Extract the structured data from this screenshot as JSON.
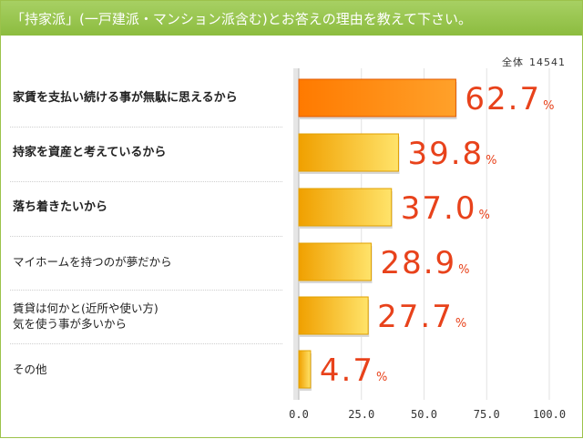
{
  "header": {
    "title": "「持家派」(一戸建派・マンション派含む)とお答えの理由を教えて下さい。"
  },
  "total": {
    "label": "全体",
    "value": "14541"
  },
  "colors": {
    "header": "#96c64f",
    "top_bar": "#ff7a00",
    "bars": "#f5b20c",
    "value_text": "#e8421b"
  },
  "chart_data": {
    "type": "bar",
    "orientation": "horizontal",
    "categories": [
      "家賃を支払い続ける事が無駄に思えるから",
      "持家を資産と考えているから",
      "落ち着きたいから",
      "マイホームを持つのが夢だから",
      "賃貸は何かと(近所や使い方)\n気を使う事が多いから",
      "その他"
    ],
    "bold": [
      true,
      true,
      true,
      false,
      false,
      false
    ],
    "values": [
      62.7,
      39.8,
      37.0,
      28.9,
      27.7,
      4.7
    ],
    "value_labels": [
      "62.7",
      "39.8",
      "37.0",
      "28.9",
      "27.7",
      "4.7"
    ],
    "unit": "%",
    "xlim": [
      0,
      100
    ],
    "xticks": [
      "0.0",
      "25.0",
      "50.0",
      "75.0",
      "100.0"
    ],
    "xtick_values": [
      0,
      25,
      50,
      75,
      100
    ],
    "grid": true
  }
}
